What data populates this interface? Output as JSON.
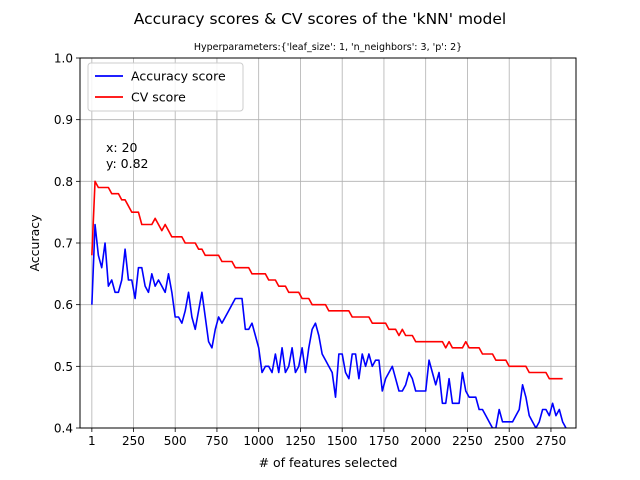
{
  "chart_data": {
    "type": "line",
    "title": "Accuracy scores & CV scores of the 'kNN' model",
    "subtitle": "Hyperparameters:{'leaf_size': 1, 'n_neighbors': 3, 'p': 2}",
    "xlabel": "# of features selected",
    "ylabel": "Accuracy",
    "xlim": [
      -70,
      2900
    ],
    "ylim": [
      0.4,
      1.0
    ],
    "xticks": [
      1,
      250,
      500,
      750,
      1000,
      1250,
      1500,
      1750,
      2000,
      2250,
      2500,
      2750
    ],
    "xtick_labels": [
      "1",
      "250",
      "500",
      "750",
      "1000",
      "1250",
      "1500",
      "1750",
      "2000",
      "2250",
      "2500",
      "2750"
    ],
    "yticks": [
      0.4,
      0.5,
      0.6,
      0.7,
      0.8,
      0.9,
      1.0
    ],
    "ytick_labels": [
      "0.4",
      "0.5",
      "0.6",
      "0.7",
      "0.8",
      "0.9",
      "1.0"
    ],
    "grid": true,
    "legend_position": "top-left",
    "annotation": {
      "lines": [
        "x: 20",
        "y: 0.82"
      ],
      "x": 20,
      "y": 0.82
    },
    "series": [
      {
        "name": "Accuracy score",
        "color": "#0000ff",
        "points": [
          [
            1,
            0.6
          ],
          [
            20,
            0.73
          ],
          [
            40,
            0.68
          ],
          [
            60,
            0.66
          ],
          [
            80,
            0.7
          ],
          [
            100,
            0.63
          ],
          [
            120,
            0.64
          ],
          [
            140,
            0.62
          ],
          [
            160,
            0.62
          ],
          [
            180,
            0.64
          ],
          [
            200,
            0.69
          ],
          [
            220,
            0.64
          ],
          [
            240,
            0.64
          ],
          [
            260,
            0.61
          ],
          [
            280,
            0.66
          ],
          [
            300,
            0.66
          ],
          [
            320,
            0.63
          ],
          [
            340,
            0.62
          ],
          [
            360,
            0.65
          ],
          [
            380,
            0.63
          ],
          [
            400,
            0.64
          ],
          [
            420,
            0.63
          ],
          [
            440,
            0.62
          ],
          [
            460,
            0.65
          ],
          [
            480,
            0.62
          ],
          [
            500,
            0.58
          ],
          [
            520,
            0.58
          ],
          [
            540,
            0.57
          ],
          [
            560,
            0.59
          ],
          [
            580,
            0.62
          ],
          [
            600,
            0.58
          ],
          [
            620,
            0.56
          ],
          [
            640,
            0.59
          ],
          [
            660,
            0.62
          ],
          [
            680,
            0.58
          ],
          [
            700,
            0.54
          ],
          [
            720,
            0.53
          ],
          [
            740,
            0.56
          ],
          [
            760,
            0.58
          ],
          [
            780,
            0.57
          ],
          [
            800,
            0.58
          ],
          [
            820,
            0.59
          ],
          [
            840,
            0.6
          ],
          [
            860,
            0.61
          ],
          [
            880,
            0.61
          ],
          [
            900,
            0.61
          ],
          [
            920,
            0.56
          ],
          [
            940,
            0.56
          ],
          [
            960,
            0.57
          ],
          [
            980,
            0.55
          ],
          [
            1000,
            0.53
          ],
          [
            1020,
            0.49
          ],
          [
            1040,
            0.5
          ],
          [
            1060,
            0.5
          ],
          [
            1080,
            0.49
          ],
          [
            1100,
            0.52
          ],
          [
            1120,
            0.49
          ],
          [
            1140,
            0.53
          ],
          [
            1160,
            0.49
          ],
          [
            1180,
            0.5
          ],
          [
            1200,
            0.53
          ],
          [
            1220,
            0.49
          ],
          [
            1240,
            0.5
          ],
          [
            1260,
            0.53
          ],
          [
            1280,
            0.49
          ],
          [
            1300,
            0.53
          ],
          [
            1320,
            0.56
          ],
          [
            1340,
            0.57
          ],
          [
            1360,
            0.55
          ],
          [
            1380,
            0.52
          ],
          [
            1400,
            0.51
          ],
          [
            1420,
            0.5
          ],
          [
            1440,
            0.49
          ],
          [
            1460,
            0.45
          ],
          [
            1480,
            0.52
          ],
          [
            1500,
            0.52
          ],
          [
            1520,
            0.49
          ],
          [
            1540,
            0.48
          ],
          [
            1560,
            0.52
          ],
          [
            1580,
            0.52
          ],
          [
            1600,
            0.48
          ],
          [
            1620,
            0.52
          ],
          [
            1640,
            0.5
          ],
          [
            1660,
            0.52
          ],
          [
            1680,
            0.5
          ],
          [
            1700,
            0.51
          ],
          [
            1720,
            0.51
          ],
          [
            1740,
            0.46
          ],
          [
            1760,
            0.48
          ],
          [
            1780,
            0.49
          ],
          [
            1800,
            0.5
          ],
          [
            1820,
            0.48
          ],
          [
            1840,
            0.46
          ],
          [
            1860,
            0.46
          ],
          [
            1880,
            0.47
          ],
          [
            1900,
            0.49
          ],
          [
            1920,
            0.48
          ],
          [
            1940,
            0.46
          ],
          [
            1960,
            0.46
          ],
          [
            1980,
            0.46
          ],
          [
            2000,
            0.46
          ],
          [
            2020,
            0.51
          ],
          [
            2040,
            0.49
          ],
          [
            2060,
            0.47
          ],
          [
            2080,
            0.49
          ],
          [
            2100,
            0.44
          ],
          [
            2120,
            0.44
          ],
          [
            2140,
            0.48
          ],
          [
            2160,
            0.44
          ],
          [
            2180,
            0.44
          ],
          [
            2200,
            0.44
          ],
          [
            2220,
            0.49
          ],
          [
            2240,
            0.46
          ],
          [
            2260,
            0.45
          ],
          [
            2280,
            0.45
          ],
          [
            2300,
            0.45
          ],
          [
            2320,
            0.43
          ],
          [
            2340,
            0.43
          ],
          [
            2360,
            0.42
          ],
          [
            2380,
            0.41
          ],
          [
            2400,
            0.4
          ],
          [
            2420,
            0.4
          ],
          [
            2440,
            0.43
          ],
          [
            2460,
            0.41
          ],
          [
            2480,
            0.41
          ],
          [
            2500,
            0.41
          ],
          [
            2520,
            0.41
          ],
          [
            2540,
            0.42
          ],
          [
            2560,
            0.43
          ],
          [
            2580,
            0.47
          ],
          [
            2600,
            0.45
          ],
          [
            2620,
            0.42
          ],
          [
            2640,
            0.41
          ],
          [
            2660,
            0.4
          ],
          [
            2680,
            0.41
          ],
          [
            2700,
            0.43
          ],
          [
            2720,
            0.43
          ],
          [
            2740,
            0.42
          ],
          [
            2760,
            0.44
          ],
          [
            2780,
            0.42
          ],
          [
            2800,
            0.43
          ],
          [
            2820,
            0.41
          ],
          [
            2840,
            0.4
          ]
        ]
      },
      {
        "name": "CV score",
        "color": "#ff0000",
        "points": [
          [
            1,
            0.68
          ],
          [
            20,
            0.8
          ],
          [
            40,
            0.79
          ],
          [
            60,
            0.79
          ],
          [
            80,
            0.79
          ],
          [
            100,
            0.79
          ],
          [
            120,
            0.78
          ],
          [
            140,
            0.78
          ],
          [
            160,
            0.78
          ],
          [
            180,
            0.77
          ],
          [
            200,
            0.77
          ],
          [
            220,
            0.76
          ],
          [
            240,
            0.75
          ],
          [
            260,
            0.75
          ],
          [
            280,
            0.75
          ],
          [
            300,
            0.73
          ],
          [
            320,
            0.73
          ],
          [
            340,
            0.73
          ],
          [
            360,
            0.73
          ],
          [
            380,
            0.74
          ],
          [
            400,
            0.73
          ],
          [
            420,
            0.72
          ],
          [
            440,
            0.73
          ],
          [
            460,
            0.72
          ],
          [
            480,
            0.71
          ],
          [
            500,
            0.71
          ],
          [
            520,
            0.71
          ],
          [
            540,
            0.71
          ],
          [
            560,
            0.7
          ],
          [
            580,
            0.7
          ],
          [
            600,
            0.7
          ],
          [
            620,
            0.7
          ],
          [
            640,
            0.69
          ],
          [
            660,
            0.69
          ],
          [
            680,
            0.68
          ],
          [
            700,
            0.68
          ],
          [
            720,
            0.68
          ],
          [
            740,
            0.68
          ],
          [
            760,
            0.68
          ],
          [
            780,
            0.67
          ],
          [
            800,
            0.67
          ],
          [
            820,
            0.67
          ],
          [
            840,
            0.67
          ],
          [
            860,
            0.66
          ],
          [
            880,
            0.66
          ],
          [
            900,
            0.66
          ],
          [
            920,
            0.66
          ],
          [
            940,
            0.66
          ],
          [
            960,
            0.65
          ],
          [
            980,
            0.65
          ],
          [
            1000,
            0.65
          ],
          [
            1020,
            0.65
          ],
          [
            1040,
            0.65
          ],
          [
            1060,
            0.64
          ],
          [
            1080,
            0.64
          ],
          [
            1100,
            0.64
          ],
          [
            1120,
            0.63
          ],
          [
            1140,
            0.63
          ],
          [
            1160,
            0.63
          ],
          [
            1180,
            0.62
          ],
          [
            1200,
            0.62
          ],
          [
            1220,
            0.62
          ],
          [
            1240,
            0.62
          ],
          [
            1260,
            0.61
          ],
          [
            1280,
            0.61
          ],
          [
            1300,
            0.61
          ],
          [
            1320,
            0.6
          ],
          [
            1340,
            0.6
          ],
          [
            1360,
            0.6
          ],
          [
            1380,
            0.6
          ],
          [
            1400,
            0.6
          ],
          [
            1420,
            0.59
          ],
          [
            1440,
            0.59
          ],
          [
            1460,
            0.59
          ],
          [
            1480,
            0.59
          ],
          [
            1500,
            0.59
          ],
          [
            1520,
            0.59
          ],
          [
            1540,
            0.59
          ],
          [
            1560,
            0.58
          ],
          [
            1580,
            0.58
          ],
          [
            1600,
            0.58
          ],
          [
            1620,
            0.58
          ],
          [
            1640,
            0.58
          ],
          [
            1660,
            0.58
          ],
          [
            1680,
            0.57
          ],
          [
            1700,
            0.57
          ],
          [
            1720,
            0.57
          ],
          [
            1740,
            0.57
          ],
          [
            1760,
            0.57
          ],
          [
            1780,
            0.56
          ],
          [
            1800,
            0.56
          ],
          [
            1820,
            0.56
          ],
          [
            1840,
            0.55
          ],
          [
            1860,
            0.56
          ],
          [
            1880,
            0.55
          ],
          [
            1900,
            0.55
          ],
          [
            1920,
            0.55
          ],
          [
            1940,
            0.54
          ],
          [
            1960,
            0.54
          ],
          [
            1980,
            0.54
          ],
          [
            2000,
            0.54
          ],
          [
            2020,
            0.54
          ],
          [
            2040,
            0.54
          ],
          [
            2060,
            0.54
          ],
          [
            2080,
            0.54
          ],
          [
            2100,
            0.54
          ],
          [
            2120,
            0.53
          ],
          [
            2140,
            0.54
          ],
          [
            2160,
            0.53
          ],
          [
            2180,
            0.53
          ],
          [
            2200,
            0.53
          ],
          [
            2220,
            0.53
          ],
          [
            2240,
            0.54
          ],
          [
            2260,
            0.53
          ],
          [
            2280,
            0.53
          ],
          [
            2300,
            0.53
          ],
          [
            2320,
            0.53
          ],
          [
            2340,
            0.52
          ],
          [
            2360,
            0.52
          ],
          [
            2380,
            0.52
          ],
          [
            2400,
            0.52
          ],
          [
            2420,
            0.51
          ],
          [
            2440,
            0.51
          ],
          [
            2460,
            0.51
          ],
          [
            2480,
            0.51
          ],
          [
            2500,
            0.5
          ],
          [
            2520,
            0.5
          ],
          [
            2540,
            0.5
          ],
          [
            2560,
            0.5
          ],
          [
            2580,
            0.5
          ],
          [
            2600,
            0.5
          ],
          [
            2620,
            0.49
          ],
          [
            2640,
            0.49
          ],
          [
            2660,
            0.49
          ],
          [
            2680,
            0.49
          ],
          [
            2700,
            0.49
          ],
          [
            2720,
            0.49
          ],
          [
            2740,
            0.48
          ],
          [
            2760,
            0.48
          ],
          [
            2780,
            0.48
          ],
          [
            2800,
            0.48
          ],
          [
            2820,
            0.48
          ]
        ]
      }
    ]
  }
}
